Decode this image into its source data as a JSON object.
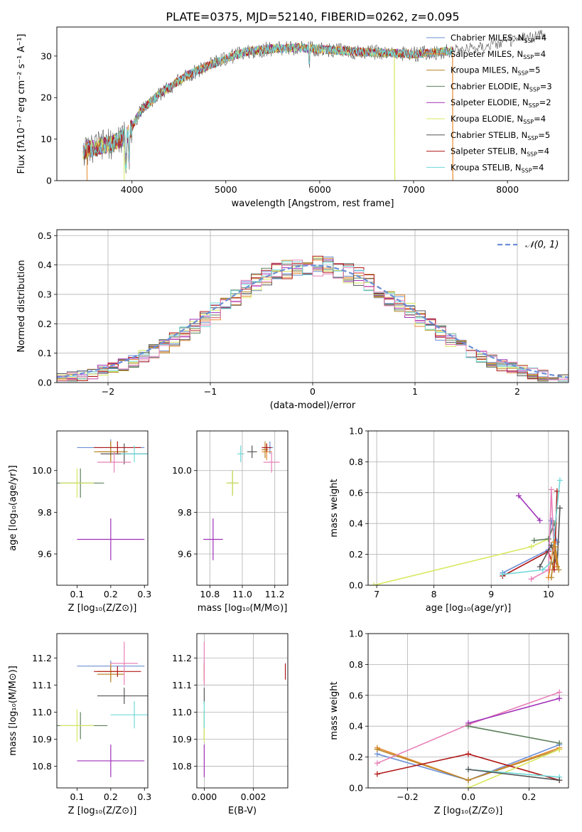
{
  "title": "PLATE=0375, MJD=52140, FIBERID=0262, z=0.095",
  "colors": {
    "chabrier_miles": "#6b8fd6",
    "salpeter_miles": "#e8892e",
    "kroupa_miles": "#b8862a",
    "chabrier_elodie": "#5c7f5c",
    "salpeter_elodie": "#a030b8",
    "kroupa_elodie": "#d8e860",
    "chabrier_stelib": "#555555",
    "salpeter_stelib": "#b01818",
    "kroupa_stelib": "#70d8d8",
    "pink": "#e880b8",
    "normal": "#6b8fd6",
    "grid": "#b0b0b0"
  },
  "chart_data": [
    {
      "id": "spectrum",
      "type": "line",
      "xlabel": "wavelength [Angstrom, rest frame]",
      "ylabel": "Flux [fλ10⁻¹⁷ erg cm⁻² s⁻¹ A⁻¹]",
      "xlim": [
        3200,
        8650
      ],
      "ylim": [
        0,
        37
      ],
      "xticks": [
        4000,
        5000,
        6000,
        7000,
        8000
      ],
      "yticks": [
        0,
        10,
        20,
        30
      ],
      "grid": false,
      "legend_position": "top-right",
      "continuum": {
        "x": [
          3480,
          3600,
          3800,
          3950,
          4100,
          4300,
          4600,
          4900,
          5200,
          5500,
          5800,
          6100,
          6400,
          6700,
          7000,
          7300,
          7600,
          7900,
          8200,
          8400
        ],
        "y": [
          7,
          8,
          9,
          11,
          17,
          21,
          25.5,
          28.5,
          31,
          31.8,
          32,
          31.5,
          31,
          30.8,
          30.5,
          31,
          32,
          33,
          34.5,
          35
        ]
      },
      "series": [
        {
          "name": "Chabrier MILES, N_SSP=4",
          "label": "Chabrier MILES, N",
          "n": "=4",
          "color_key": "chabrier_miles"
        },
        {
          "name": "Salpeter MILES, N_SSP=4",
          "label": "Salpeter MILES, N",
          "n": "=4",
          "color_key": "salpeter_miles"
        },
        {
          "name": "Kroupa MILES, N_SSP=5",
          "label": "Kroupa MILES, N",
          "n": "=5",
          "color_key": "kroupa_miles"
        },
        {
          "name": "Chabrier ELODIE, N_SSP=3",
          "label": "Chabrier ELODIE, N",
          "n": "=3",
          "color_key": "chabrier_elodie"
        },
        {
          "name": "Salpeter ELODIE, N_SSP=2",
          "label": "Salpeter ELODIE, N",
          "n": "=2",
          "color_key": "salpeter_elodie"
        },
        {
          "name": "Kroupa ELODIE, N_SSP=4",
          "label": "Kroupa ELODIE, N",
          "n": "=4",
          "color_key": "kroupa_elodie"
        },
        {
          "name": "Chabrier STELIB, N_SSP=5",
          "label": "Chabrier STELIB, N",
          "n": "=5",
          "color_key": "chabrier_stelib"
        },
        {
          "name": "Salpeter STELIB, N_SSP=4",
          "label": "Salpeter STELIB, N",
          "n": "=4",
          "color_key": "salpeter_stelib"
        },
        {
          "name": "Kroupa STELIB, N_SSP=4",
          "label": "Kroupa STELIB, N",
          "n": "=4",
          "color_key": "kroupa_stelib"
        }
      ],
      "subscript": "SSP"
    },
    {
      "id": "residuals",
      "type": "histogram",
      "xlabel": "(data-model)/error",
      "ylabel": "Normed distribution",
      "xlim": [
        -2.5,
        2.5
      ],
      "ylim": [
        0,
        0.52
      ],
      "xticks": [
        -2,
        -1,
        0,
        1,
        2
      ],
      "yticks": [
        0.0,
        0.1,
        0.2,
        0.3,
        0.4,
        0.5
      ],
      "grid": true,
      "legend_position": "top-right",
      "normal_label": "𝒩(0, 1)",
      "bin_edges": [
        -2.5,
        -2.4,
        -2.3,
        -2.2,
        -2.1,
        -2.0,
        -1.9,
        -1.8,
        -1.7,
        -1.6,
        -1.5,
        -1.4,
        -1.3,
        -1.2,
        -1.1,
        -1.0,
        -0.9,
        -0.8,
        -0.7,
        -0.6,
        -0.5,
        -0.4,
        -0.3,
        -0.2,
        -0.1,
        0.0,
        0.1,
        0.2,
        0.3,
        0.4,
        0.5,
        0.6,
        0.7,
        0.8,
        0.9,
        1.0,
        1.1,
        1.2,
        1.3,
        1.4,
        1.5,
        1.6,
        1.7,
        1.8,
        1.9,
        2.0,
        2.1,
        2.2,
        2.3,
        2.4,
        2.5
      ],
      "hist_colors": [
        "chabrier_miles",
        "salpeter_miles",
        "kroupa_miles",
        "chabrier_elodie",
        "salpeter_elodie",
        "kroupa_elodie",
        "chabrier_stelib",
        "salpeter_stelib",
        "kroupa_stelib",
        "pink"
      ]
    },
    {
      "id": "z-age",
      "type": "errorbar",
      "xlabel": "Z [log₁₀(Z/Z⊙)]",
      "ylabel": "age  [log₁₀(age/yr)]",
      "xlim": [
        0.04,
        0.31
      ],
      "ylim": [
        9.45,
        10.19
      ],
      "xticks": [
        0.1,
        0.2,
        0.3
      ],
      "yticks": [
        9.6,
        9.8,
        10.0
      ],
      "grid": false,
      "points": [
        {
          "x": 0.2,
          "y": 10.11,
          "xerr": 0.1,
          "yerr": 0.04,
          "color_key": "chabrier_miles"
        },
        {
          "x": 0.2,
          "y": 10.09,
          "xerr": 0.04,
          "yerr": 0.05,
          "color_key": "salpeter_miles"
        },
        {
          "x": 0.2,
          "y": 10.09,
          "xerr": 0.05,
          "yerr": 0.05,
          "color_key": "kroupa_miles"
        },
        {
          "x": 0.11,
          "y": 9.94,
          "xerr": 0.07,
          "yerr": 0.07,
          "color_key": "chabrier_elodie"
        },
        {
          "x": 0.2,
          "y": 9.67,
          "xerr": 0.1,
          "yerr": 0.1,
          "color_key": "salpeter_elodie"
        },
        {
          "x": 0.1,
          "y": 9.94,
          "xerr": 0.05,
          "yerr": 0.07,
          "color_key": "kroupa_elodie"
        },
        {
          "x": 0.24,
          "y": 10.08,
          "xerr": 0.07,
          "yerr": 0.05,
          "color_key": "chabrier_stelib"
        },
        {
          "x": 0.22,
          "y": 10.11,
          "xerr": 0.07,
          "yerr": 0.03,
          "color_key": "salpeter_stelib"
        },
        {
          "x": 0.27,
          "y": 10.08,
          "xerr": 0.04,
          "yerr": 0.04,
          "color_key": "kroupa_stelib"
        },
        {
          "x": 0.21,
          "y": 10.04,
          "xerr": 0.05,
          "yerr": 0.05,
          "color_key": "pink"
        }
      ]
    },
    {
      "id": "mass-age",
      "type": "errorbar",
      "xlabel": "mass [log₁₀(M/M⊙)]",
      "xlim": [
        10.72,
        11.28
      ],
      "ylim": [
        9.45,
        10.19
      ],
      "xticks": [
        10.8,
        11.0,
        11.2
      ],
      "yticks": [
        9.6,
        9.8,
        10.0
      ],
      "grid": true,
      "points": [
        {
          "x": 11.17,
          "y": 10.11,
          "xerr": 0.02,
          "yerr": 0.03,
          "color_key": "chabrier_miles"
        },
        {
          "x": 11.15,
          "y": 10.09,
          "xerr": 0.03,
          "yerr": 0.04,
          "color_key": "salpeter_miles"
        },
        {
          "x": 11.14,
          "y": 10.1,
          "xerr": 0.02,
          "yerr": 0.04,
          "color_key": "kroupa_miles"
        },
        {
          "x": 10.94,
          "y": 9.94,
          "xerr": 0.03,
          "yerr": 0.06,
          "color_key": "chabrier_elodie"
        },
        {
          "x": 10.82,
          "y": 9.67,
          "xerr": 0.06,
          "yerr": 0.1,
          "color_key": "salpeter_elodie"
        },
        {
          "x": 10.94,
          "y": 9.94,
          "xerr": 0.04,
          "yerr": 0.06,
          "color_key": "kroupa_elodie"
        },
        {
          "x": 11.06,
          "y": 10.09,
          "xerr": 0.03,
          "yerr": 0.03,
          "color_key": "chabrier_stelib"
        },
        {
          "x": 11.15,
          "y": 10.11,
          "xerr": 0.03,
          "yerr": 0.02,
          "color_key": "salpeter_stelib"
        },
        {
          "x": 10.99,
          "y": 10.08,
          "xerr": 0.02,
          "yerr": 0.04,
          "color_key": "kroupa_stelib"
        },
        {
          "x": 11.18,
          "y": 10.04,
          "xerr": 0.05,
          "yerr": 0.05,
          "color_key": "pink"
        }
      ]
    },
    {
      "id": "age-weight",
      "type": "line",
      "xlabel": "age  [log₁₀(age/yr)]",
      "ylabel": "mass weight",
      "xlim": [
        6.85,
        10.35
      ],
      "ylim": [
        0,
        1
      ],
      "xticks": [
        7,
        8,
        9,
        10
      ],
      "yticks": [
        0.0,
        0.2,
        0.4,
        0.6,
        0.8,
        1.0
      ],
      "grid": true,
      "series": [
        {
          "color_key": "kroupa_elodie",
          "x": [
            6.95,
            9.7,
            10.0,
            10.1
          ],
          "y": [
            0.0,
            0.25,
            0.3,
            0.4
          ]
        },
        {
          "color_key": "salpeter_elodie",
          "x": [
            9.48,
            9.85
          ],
          "y": [
            0.58,
            0.42
          ]
        },
        {
          "color_key": "chabrier_miles",
          "x": [
            9.2,
            10.0,
            10.05,
            10.15
          ],
          "y": [
            0.08,
            0.23,
            0.42,
            0.28
          ]
        },
        {
          "color_key": "chabrier_elodie",
          "x": [
            9.75,
            10.0,
            10.1
          ],
          "y": [
            0.29,
            0.3,
            0.4
          ]
        },
        {
          "color_key": "salpeter_stelib",
          "x": [
            9.2,
            10.0,
            10.1,
            10.15
          ],
          "y": [
            0.06,
            0.22,
            0.1,
            0.61
          ]
        },
        {
          "color_key": "pink",
          "x": [
            9.7,
            10.0,
            10.05,
            10.1
          ],
          "y": [
            0.04,
            0.1,
            0.62,
            0.2
          ]
        },
        {
          "color_key": "kroupa_stelib",
          "x": [
            9.2,
            9.9,
            10.05,
            10.2
          ],
          "y": [
            0.07,
            0.1,
            0.15,
            0.68
          ]
        },
        {
          "color_key": "chabrier_stelib",
          "x": [
            9.85,
            10.05,
            10.15,
            10.2
          ],
          "y": [
            0.12,
            0.26,
            0.12,
            0.5
          ]
        },
        {
          "color_key": "salpeter_miles",
          "x": [
            10.0,
            10.1,
            10.15
          ],
          "y": [
            0.05,
            0.28,
            0.12
          ]
        },
        {
          "color_key": "kroupa_miles",
          "x": [
            10.05,
            10.12,
            10.18
          ],
          "y": [
            0.05,
            0.25,
            0.1
          ]
        }
      ]
    },
    {
      "id": "z-mass",
      "type": "errorbar",
      "xlabel": "Z [log₁₀(Z/Z⊙)]",
      "ylabel": "mass [log₁₀(M/M⊙)]",
      "xlim": [
        0.04,
        0.31
      ],
      "ylim": [
        10.72,
        11.29
      ],
      "xticks": [
        0.1,
        0.2,
        0.3
      ],
      "yticks": [
        10.8,
        10.9,
        11.0,
        11.1,
        11.2
      ],
      "grid": false,
      "points": [
        {
          "x": 0.2,
          "y": 11.17,
          "xerr": 0.1,
          "yerr": 0.02,
          "color_key": "chabrier_miles"
        },
        {
          "x": 0.2,
          "y": 11.15,
          "xerr": 0.04,
          "yerr": 0.03,
          "color_key": "salpeter_miles"
        },
        {
          "x": 0.2,
          "y": 11.14,
          "xerr": 0.04,
          "yerr": 0.03,
          "color_key": "kroupa_miles"
        },
        {
          "x": 0.11,
          "y": 10.95,
          "xerr": 0.08,
          "yerr": 0.05,
          "color_key": "chabrier_elodie"
        },
        {
          "x": 0.2,
          "y": 10.82,
          "xerr": 0.1,
          "yerr": 0.06,
          "color_key": "salpeter_elodie"
        },
        {
          "x": 0.1,
          "y": 10.95,
          "xerr": 0.05,
          "yerr": 0.06,
          "color_key": "kroupa_elodie"
        },
        {
          "x": 0.24,
          "y": 11.06,
          "xerr": 0.08,
          "yerr": 0.03,
          "color_key": "chabrier_stelib"
        },
        {
          "x": 0.22,
          "y": 11.15,
          "xerr": 0.07,
          "yerr": 0.02,
          "color_key": "salpeter_stelib"
        },
        {
          "x": 0.27,
          "y": 10.99,
          "xerr": 0.07,
          "yerr": 0.05,
          "color_key": "kroupa_stelib"
        },
        {
          "x": 0.24,
          "y": 11.18,
          "xerr": 0.04,
          "yerr": 0.08,
          "color_key": "pink"
        }
      ]
    },
    {
      "id": "ebv-mass",
      "type": "errorbar",
      "xlabel": "E(B-V)",
      "xlim": [
        -0.0003,
        0.0034
      ],
      "ylim": [
        10.72,
        11.29
      ],
      "xticks": [
        0.0,
        0.002
      ],
      "xtick_labels": [
        "0.000",
        "0.002"
      ],
      "yticks": [
        10.8,
        10.9,
        11.0,
        11.1,
        11.2
      ],
      "grid": true,
      "points": [
        {
          "x": 0.0,
          "y": 11.17,
          "xerr": 0,
          "yerr": 0.02,
          "color_key": "chabrier_miles"
        },
        {
          "x": 0.0,
          "y": 11.15,
          "xerr": 0,
          "yerr": 0.03,
          "color_key": "salpeter_miles"
        },
        {
          "x": 0.0,
          "y": 11.14,
          "xerr": 0,
          "yerr": 0.03,
          "color_key": "kroupa_miles"
        },
        {
          "x": 0.0,
          "y": 10.95,
          "xerr": 0,
          "yerr": 0.05,
          "color_key": "chabrier_elodie"
        },
        {
          "x": 0.0,
          "y": 10.82,
          "xerr": 0,
          "yerr": 0.06,
          "color_key": "salpeter_elodie"
        },
        {
          "x": 0.0,
          "y": 10.95,
          "xerr": 0,
          "yerr": 0.06,
          "color_key": "kroupa_elodie"
        },
        {
          "x": 0.0,
          "y": 11.06,
          "xerr": 0,
          "yerr": 0.03,
          "color_key": "chabrier_stelib"
        },
        {
          "x": 0.0033,
          "y": 11.15,
          "xerr": 0,
          "yerr": 0.03,
          "color_key": "salpeter_stelib"
        },
        {
          "x": 0.0,
          "y": 10.99,
          "xerr": 0,
          "yerr": 0.05,
          "color_key": "kroupa_stelib"
        },
        {
          "x": 0.0,
          "y": 11.18,
          "xerr": 0,
          "yerr": 0.08,
          "color_key": "pink"
        }
      ]
    },
    {
      "id": "z-weight",
      "type": "line",
      "xlabel": "Z [log₁₀(Z/Z⊙)]",
      "ylabel": "mass weight",
      "xlim": [
        -0.33,
        0.33
      ],
      "ylim": [
        0,
        1
      ],
      "xticks": [
        -0.2,
        0.0,
        0.2
      ],
      "xtick_labels": [
        "−0.2",
        "0.0",
        "0.2"
      ],
      "yticks": [
        0.0,
        0.2,
        0.4,
        0.6,
        0.8,
        1.0
      ],
      "grid": true,
      "series": [
        {
          "color_key": "chabrier_miles",
          "x": [
            -0.3,
            0.0,
            0.3
          ],
          "y": [
            0.22,
            0.05,
            0.28
          ]
        },
        {
          "color_key": "salpeter_miles",
          "x": [
            -0.3,
            0.0,
            0.3
          ],
          "y": [
            0.26,
            0.05,
            0.26
          ]
        },
        {
          "color_key": "kroupa_miles",
          "x": [
            -0.3,
            0.0,
            0.3
          ],
          "y": [
            0.25,
            0.05,
            0.25
          ]
        },
        {
          "color_key": "salpeter_stelib",
          "x": [
            -0.3,
            0.0,
            0.3
          ],
          "y": [
            0.09,
            0.22,
            0.05
          ]
        },
        {
          "color_key": "pink",
          "x": [
            -0.3,
            0.0,
            0.3
          ],
          "y": [
            0.16,
            0.41,
            0.62
          ]
        },
        {
          "color_key": "salpeter_elodie",
          "x": [
            0.0,
            0.3
          ],
          "y": [
            0.42,
            0.58
          ]
        },
        {
          "color_key": "chabrier_elodie",
          "x": [
            0.0,
            0.3
          ],
          "y": [
            0.4,
            0.29
          ]
        },
        {
          "color_key": "kroupa_elodie",
          "x": [
            0.0,
            0.3
          ],
          "y": [
            0.0,
            0.25
          ]
        },
        {
          "color_key": "kroupa_stelib",
          "x": [
            0.0,
            0.3
          ],
          "y": [
            0.12,
            0.07
          ]
        },
        {
          "color_key": "chabrier_stelib",
          "x": [
            0.0,
            0.3
          ],
          "y": [
            0.12,
            0.05
          ]
        }
      ]
    }
  ]
}
